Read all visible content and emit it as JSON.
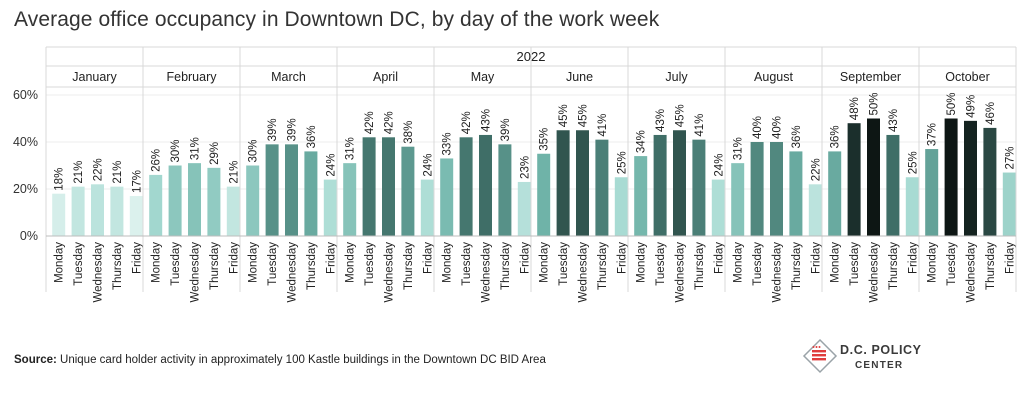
{
  "title": "Average office occupancy in Downtown DC, by day of the work week",
  "footer": {
    "source_label": "Source:",
    "source_text": "Unique card holder activity in approximately 100 Kastle buildings in the Downtown DC BID  Area"
  },
  "logo": {
    "line1": "D.C. POLICY",
    "line2": "CENTER",
    "icon": "dc-map-flag-icon"
  },
  "chart_data": {
    "type": "bar",
    "year": "2022",
    "days": [
      "Monday",
      "Tuesday",
      "Wednesday",
      "Thursday",
      "Friday"
    ],
    "months": [
      {
        "name": "January",
        "values": [
          18,
          21,
          22,
          21,
          17
        ]
      },
      {
        "name": "February",
        "values": [
          26,
          30,
          31,
          29,
          21
        ]
      },
      {
        "name": "March",
        "values": [
          30,
          39,
          39,
          36,
          24
        ]
      },
      {
        "name": "April",
        "values": [
          31,
          42,
          42,
          38,
          24
        ]
      },
      {
        "name": "May",
        "values": [
          33,
          42,
          43,
          39,
          23
        ]
      },
      {
        "name": "June",
        "values": [
          35,
          45,
          45,
          41,
          25
        ]
      },
      {
        "name": "July",
        "values": [
          34,
          43,
          45,
          41,
          24
        ]
      },
      {
        "name": "August",
        "values": [
          31,
          40,
          40,
          36,
          22
        ]
      },
      {
        "name": "September",
        "values": [
          36,
          48,
          50,
          43,
          25
        ]
      },
      {
        "name": "October",
        "values": [
          37,
          50,
          49,
          46,
          27
        ]
      }
    ],
    "y_ticks": [
      "0%",
      "20%",
      "40%",
      "60%"
    ],
    "ylim": [
      0,
      60
    ],
    "value_suffix": "%",
    "grid": true,
    "color_scale": [
      "#e8f6f4",
      "#a8dbd3",
      "#6fb3a8",
      "#3f6e67",
      "#0d1614"
    ]
  }
}
